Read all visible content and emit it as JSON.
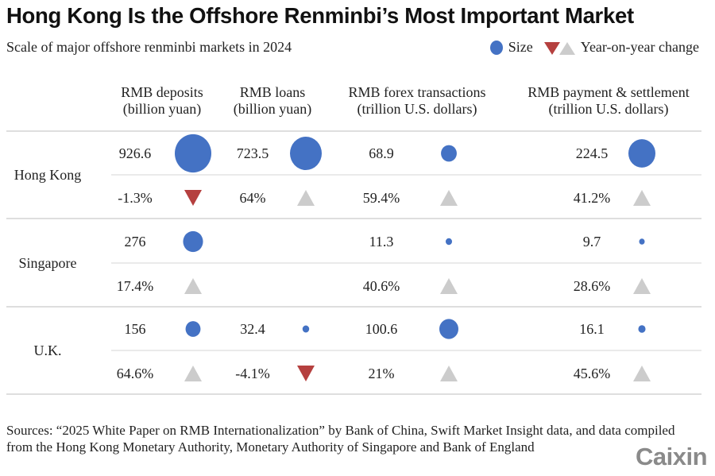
{
  "title": "Hong Kong Is the Offshore Renminbi’s Most Important Market",
  "subtitle": "Scale of major offshore renminbi markets in 2024",
  "legend": {
    "size_label": "Size",
    "yoy_label": "Year-on-year change"
  },
  "colors": {
    "size": "#4472c4",
    "decrease": "#b5403f",
    "increase": "#cccccc",
    "rule": "#bdbdbd"
  },
  "chart_data": {
    "type": "table",
    "columns": [
      {
        "line1": "RMB deposits",
        "line2": "(billion yuan)"
      },
      {
        "line1": "RMB loans",
        "line2": "(billion yuan)"
      },
      {
        "line1": "RMB forex transactions",
        "line2": "(trillion U.S. dollars)"
      },
      {
        "line1": "RMB payment & settlement",
        "line2": "(trillion U.S. dollars)"
      }
    ],
    "rows": [
      {
        "market": "Hong Kong",
        "size": [
          "926.6",
          "723.5",
          "68.9",
          "224.5"
        ],
        "yoy": [
          "-1.3%",
          "64%",
          "59.4%",
          "41.2%"
        ]
      },
      {
        "market": "Singapore",
        "size": [
          "276",
          "",
          "11.3",
          "9.7"
        ],
        "yoy": [
          "17.4%",
          "",
          "40.6%",
          "28.6%"
        ]
      },
      {
        "market": "U.K.",
        "size": [
          "156",
          "32.4",
          "100.6",
          "16.1"
        ],
        "yoy": [
          "64.6%",
          "-4.1%",
          "21%",
          "45.6%"
        ]
      }
    ]
  },
  "sources": "Sources: “2025 White Paper on RMB Internationalization” by Bank of China, Swift Market Insight data, and data compiled from the Hong Kong Monetary Authority, Monetary Authority of Singapore and Bank of England",
  "logo": "Caixin"
}
